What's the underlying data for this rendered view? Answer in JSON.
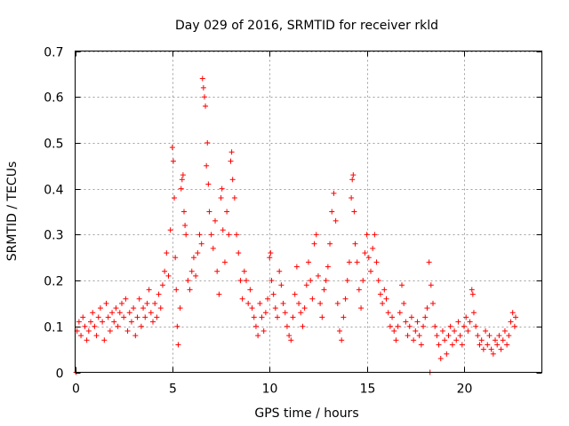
{
  "chart_data": {
    "type": "scatter",
    "title": "Day 029 of 2016, SRMTID for receiver rkld",
    "xlabel": "GPS time / hours",
    "ylabel": "SRMTID / TECUs",
    "xlim": [
      0,
      24
    ],
    "ylim": [
      0,
      0.7
    ],
    "xticks": [
      0,
      5,
      10,
      15,
      20
    ],
    "yticks": [
      0,
      0.1,
      0.2,
      0.3,
      0.4,
      0.5,
      0.6,
      0.7
    ],
    "ytick_labels": [
      "0",
      "0.1",
      "0.2",
      "0.3",
      "0.4",
      "0.5",
      "0.6",
      "0.7"
    ],
    "grid": true,
    "marker": "+",
    "color": "#ff0000",
    "series": [
      {
        "name": "SRMTID",
        "points": [
          [
            0.05,
            0.0
          ],
          [
            0.1,
            0.09
          ],
          [
            0.2,
            0.11
          ],
          [
            0.3,
            0.08
          ],
          [
            0.4,
            0.12
          ],
          [
            0.5,
            0.1
          ],
          [
            0.6,
            0.07
          ],
          [
            0.7,
            0.09
          ],
          [
            0.8,
            0.11
          ],
          [
            0.9,
            0.13
          ],
          [
            1.0,
            0.1
          ],
          [
            1.1,
            0.08
          ],
          [
            1.2,
            0.12
          ],
          [
            1.3,
            0.14
          ],
          [
            1.4,
            0.11
          ],
          [
            1.5,
            0.07
          ],
          [
            1.6,
            0.15
          ],
          [
            1.7,
            0.12
          ],
          [
            1.8,
            0.09
          ],
          [
            1.9,
            0.13
          ],
          [
            2.0,
            0.11
          ],
          [
            2.1,
            0.14
          ],
          [
            2.2,
            0.1
          ],
          [
            2.3,
            0.13
          ],
          [
            2.4,
            0.15
          ],
          [
            2.5,
            0.12
          ],
          [
            2.6,
            0.16
          ],
          [
            2.7,
            0.09
          ],
          [
            2.8,
            0.13
          ],
          [
            2.9,
            0.11
          ],
          [
            3.0,
            0.14
          ],
          [
            3.1,
            0.08
          ],
          [
            3.2,
            0.12
          ],
          [
            3.3,
            0.16
          ],
          [
            3.4,
            0.1
          ],
          [
            3.5,
            0.14
          ],
          [
            3.6,
            0.12
          ],
          [
            3.7,
            0.15
          ],
          [
            3.8,
            0.18
          ],
          [
            3.9,
            0.13
          ],
          [
            4.0,
            0.11
          ],
          [
            4.1,
            0.15
          ],
          [
            4.2,
            0.12
          ],
          [
            4.3,
            0.17
          ],
          [
            4.4,
            0.14
          ],
          [
            4.5,
            0.19
          ],
          [
            4.6,
            0.22
          ],
          [
            4.7,
            0.26
          ],
          [
            4.8,
            0.21
          ],
          [
            4.9,
            0.31
          ],
          [
            5.0,
            0.49
          ],
          [
            5.05,
            0.46
          ],
          [
            5.1,
            0.38
          ],
          [
            5.15,
            0.25
          ],
          [
            5.2,
            0.18
          ],
          [
            5.25,
            0.1
          ],
          [
            5.3,
            0.06
          ],
          [
            5.4,
            0.14
          ],
          [
            5.45,
            0.4
          ],
          [
            5.5,
            0.42
          ],
          [
            5.55,
            0.43
          ],
          [
            5.6,
            0.35
          ],
          [
            5.65,
            0.32
          ],
          [
            5.7,
            0.3
          ],
          [
            5.8,
            0.2
          ],
          [
            5.9,
            0.18
          ],
          [
            6.0,
            0.22
          ],
          [
            6.1,
            0.25
          ],
          [
            6.2,
            0.21
          ],
          [
            6.3,
            0.26
          ],
          [
            6.4,
            0.3
          ],
          [
            6.5,
            0.28
          ],
          [
            6.55,
            0.64
          ],
          [
            6.6,
            0.62
          ],
          [
            6.65,
            0.6
          ],
          [
            6.7,
            0.58
          ],
          [
            6.75,
            0.45
          ],
          [
            6.8,
            0.5
          ],
          [
            6.85,
            0.41
          ],
          [
            6.9,
            0.35
          ],
          [
            7.0,
            0.3
          ],
          [
            7.1,
            0.27
          ],
          [
            7.2,
            0.33
          ],
          [
            7.3,
            0.22
          ],
          [
            7.4,
            0.17
          ],
          [
            7.5,
            0.38
          ],
          [
            7.55,
            0.4
          ],
          [
            7.6,
            0.31
          ],
          [
            7.7,
            0.24
          ],
          [
            7.8,
            0.35
          ],
          [
            7.9,
            0.3
          ],
          [
            8.0,
            0.46
          ],
          [
            8.05,
            0.48
          ],
          [
            8.1,
            0.42
          ],
          [
            8.2,
            0.38
          ],
          [
            8.3,
            0.3
          ],
          [
            8.4,
            0.26
          ],
          [
            8.5,
            0.2
          ],
          [
            8.6,
            0.16
          ],
          [
            8.7,
            0.22
          ],
          [
            8.8,
            0.2
          ],
          [
            8.9,
            0.15
          ],
          [
            9.0,
            0.18
          ],
          [
            9.1,
            0.14
          ],
          [
            9.2,
            0.12
          ],
          [
            9.3,
            0.1
          ],
          [
            9.4,
            0.08
          ],
          [
            9.5,
            0.15
          ],
          [
            9.6,
            0.12
          ],
          [
            9.7,
            0.09
          ],
          [
            9.8,
            0.13
          ],
          [
            9.9,
            0.16
          ],
          [
            10.0,
            0.25
          ],
          [
            10.05,
            0.26
          ],
          [
            10.1,
            0.2
          ],
          [
            10.2,
            0.17
          ],
          [
            10.3,
            0.14
          ],
          [
            10.4,
            0.12
          ],
          [
            10.5,
            0.22
          ],
          [
            10.6,
            0.19
          ],
          [
            10.7,
            0.15
          ],
          [
            10.8,
            0.13
          ],
          [
            10.9,
            0.1
          ],
          [
            11.0,
            0.08
          ],
          [
            11.1,
            0.07
          ],
          [
            11.2,
            0.12
          ],
          [
            11.3,
            0.17
          ],
          [
            11.4,
            0.23
          ],
          [
            11.5,
            0.15
          ],
          [
            11.6,
            0.13
          ],
          [
            11.7,
            0.1
          ],
          [
            11.8,
            0.14
          ],
          [
            11.9,
            0.19
          ],
          [
            12.0,
            0.24
          ],
          [
            12.1,
            0.2
          ],
          [
            12.2,
            0.16
          ],
          [
            12.3,
            0.28
          ],
          [
            12.4,
            0.3
          ],
          [
            12.5,
            0.21
          ],
          [
            12.6,
            0.15
          ],
          [
            12.7,
            0.12
          ],
          [
            12.8,
            0.18
          ],
          [
            12.9,
            0.2
          ],
          [
            13.0,
            0.23
          ],
          [
            13.1,
            0.28
          ],
          [
            13.2,
            0.35
          ],
          [
            13.3,
            0.39
          ],
          [
            13.4,
            0.33
          ],
          [
            13.5,
            0.15
          ],
          [
            13.6,
            0.09
          ],
          [
            13.7,
            0.07
          ],
          [
            13.8,
            0.12
          ],
          [
            13.9,
            0.16
          ],
          [
            14.0,
            0.2
          ],
          [
            14.1,
            0.24
          ],
          [
            14.2,
            0.38
          ],
          [
            14.25,
            0.42
          ],
          [
            14.3,
            0.43
          ],
          [
            14.35,
            0.35
          ],
          [
            14.4,
            0.28
          ],
          [
            14.5,
            0.24
          ],
          [
            14.6,
            0.18
          ],
          [
            14.7,
            0.14
          ],
          [
            14.8,
            0.2
          ],
          [
            14.9,
            0.26
          ],
          [
            15.0,
            0.3
          ],
          [
            15.1,
            0.25
          ],
          [
            15.2,
            0.22
          ],
          [
            15.3,
            0.27
          ],
          [
            15.4,
            0.3
          ],
          [
            15.5,
            0.24
          ],
          [
            15.6,
            0.2
          ],
          [
            15.7,
            0.17
          ],
          [
            15.8,
            0.15
          ],
          [
            15.9,
            0.18
          ],
          [
            16.0,
            0.16
          ],
          [
            16.1,
            0.13
          ],
          [
            16.2,
            0.1
          ],
          [
            16.3,
            0.12
          ],
          [
            16.4,
            0.09
          ],
          [
            16.5,
            0.07
          ],
          [
            16.6,
            0.1
          ],
          [
            16.7,
            0.13
          ],
          [
            16.8,
            0.19
          ],
          [
            16.9,
            0.15
          ],
          [
            17.0,
            0.11
          ],
          [
            17.1,
            0.08
          ],
          [
            17.2,
            0.1
          ],
          [
            17.3,
            0.12
          ],
          [
            17.4,
            0.07
          ],
          [
            17.5,
            0.09
          ],
          [
            17.6,
            0.11
          ],
          [
            17.7,
            0.08
          ],
          [
            17.8,
            0.06
          ],
          [
            17.9,
            0.1
          ],
          [
            18.0,
            0.12
          ],
          [
            18.1,
            0.14
          ],
          [
            18.2,
            0.24
          ],
          [
            18.25,
            0.0
          ],
          [
            18.3,
            0.19
          ],
          [
            18.4,
            0.15
          ],
          [
            18.5,
            0.1
          ],
          [
            18.6,
            0.08
          ],
          [
            18.7,
            0.06
          ],
          [
            18.8,
            0.03
          ],
          [
            18.9,
            0.09
          ],
          [
            19.0,
            0.07
          ],
          [
            19.1,
            0.04
          ],
          [
            19.2,
            0.08
          ],
          [
            19.3,
            0.1
          ],
          [
            19.4,
            0.06
          ],
          [
            19.5,
            0.09
          ],
          [
            19.6,
            0.07
          ],
          [
            19.7,
            0.11
          ],
          [
            19.8,
            0.08
          ],
          [
            19.9,
            0.06
          ],
          [
            20.0,
            0.1
          ],
          [
            20.1,
            0.12
          ],
          [
            20.2,
            0.09
          ],
          [
            20.3,
            0.11
          ],
          [
            20.4,
            0.18
          ],
          [
            20.45,
            0.17
          ],
          [
            20.5,
            0.13
          ],
          [
            20.6,
            0.1
          ],
          [
            20.7,
            0.08
          ],
          [
            20.8,
            0.06
          ],
          [
            20.9,
            0.07
          ],
          [
            21.0,
            0.05
          ],
          [
            21.1,
            0.09
          ],
          [
            21.2,
            0.06
          ],
          [
            21.3,
            0.08
          ],
          [
            21.4,
            0.05
          ],
          [
            21.5,
            0.04
          ],
          [
            21.6,
            0.07
          ],
          [
            21.7,
            0.06
          ],
          [
            21.8,
            0.08
          ],
          [
            21.9,
            0.05
          ],
          [
            22.0,
            0.07
          ],
          [
            22.1,
            0.09
          ],
          [
            22.2,
            0.06
          ],
          [
            22.3,
            0.08
          ],
          [
            22.4,
            0.11
          ],
          [
            22.5,
            0.13
          ],
          [
            22.6,
            0.1
          ],
          [
            22.65,
            0.12
          ]
        ]
      }
    ]
  }
}
